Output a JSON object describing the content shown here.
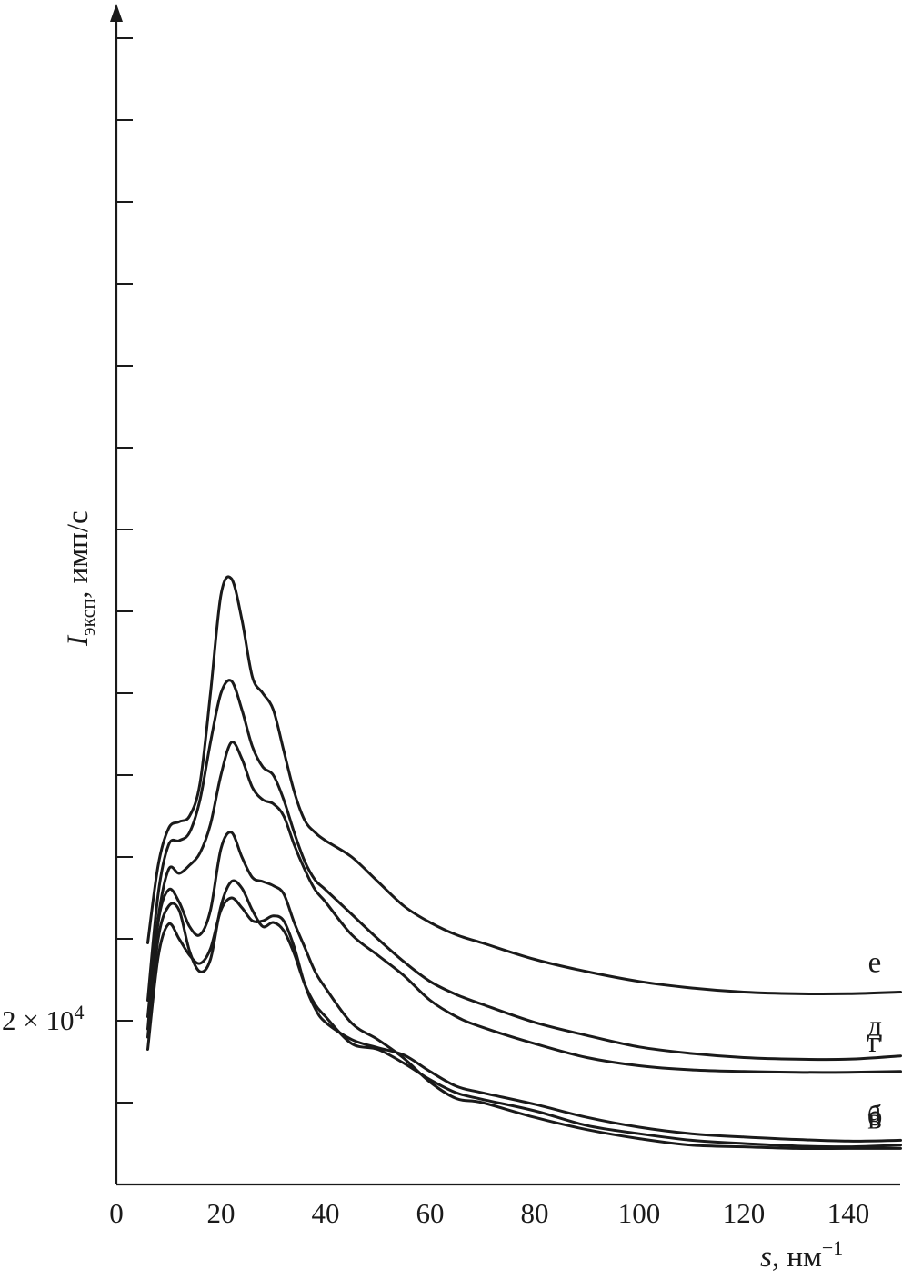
{
  "chart_data": {
    "type": "line",
    "title": "",
    "xlabel_var": "s",
    "xlabel_unit": ", нм",
    "xlabel_exp": "−1",
    "ylabel_var": "I",
    "ylabel_sub": "эксп",
    "ylabel_unit": ", имп/с",
    "y_ref_label_base": "2 × 10",
    "y_ref_label_exp": "4",
    "x_ticks": [
      "0",
      "20",
      "40",
      "60",
      "80",
      "100",
      "120",
      "140"
    ],
    "x_tick_values": [
      0,
      20,
      40,
      60,
      80,
      100,
      120,
      140
    ],
    "xlim": [
      0,
      150
    ],
    "grid": false,
    "series": [
      {
        "name": "а",
        "label": "а",
        "x": [
          6,
          8,
          10,
          12,
          14,
          16,
          18,
          20,
          22,
          24,
          26,
          28,
          30,
          32,
          34,
          36,
          38,
          40,
          45,
          50,
          55,
          60,
          65,
          70,
          80,
          90,
          100,
          110,
          120,
          130,
          140,
          150
        ],
        "y": [
          -0.35,
          0.78,
          1.18,
          1.0,
          0.8,
          0.7,
          0.88,
          1.35,
          1.5,
          1.38,
          1.22,
          1.22,
          1.28,
          1.22,
          0.9,
          0.45,
          0.15,
          -0.02,
          -0.23,
          -0.33,
          -0.42,
          -0.62,
          -0.8,
          -0.88,
          -1.02,
          -1.18,
          -1.3,
          -1.38,
          -1.42,
          -1.45,
          -1.47,
          -1.46
        ]
      },
      {
        "name": "б",
        "label": "б",
        "x": [
          6,
          8,
          10,
          12,
          14,
          16,
          18,
          20,
          22,
          24,
          26,
          28,
          30,
          32,
          34,
          36,
          38,
          40,
          45,
          50,
          55,
          60,
          65,
          70,
          80,
          90,
          100,
          110,
          120,
          130,
          140,
          150
        ],
        "y": [
          -0.2,
          1.0,
          1.4,
          1.35,
          0.85,
          0.6,
          0.75,
          1.4,
          1.7,
          1.62,
          1.35,
          1.15,
          1.2,
          1.1,
          0.82,
          0.45,
          0.2,
          0.05,
          -0.28,
          -0.35,
          -0.52,
          -0.72,
          -0.88,
          -0.96,
          -1.1,
          -1.28,
          -1.38,
          -1.46,
          -1.5,
          -1.53,
          -1.54,
          -1.52
        ]
      },
      {
        "name": "в",
        "label": "в",
        "x": [
          6,
          8,
          10,
          12,
          14,
          16,
          18,
          20,
          22,
          24,
          26,
          28,
          30,
          32,
          34,
          36,
          38,
          40,
          45,
          50,
          55,
          60,
          65,
          70,
          80,
          90,
          100,
          110,
          120,
          130,
          140,
          150
        ],
        "y": [
          -0.1,
          1.2,
          1.6,
          1.45,
          1.15,
          1.05,
          1.35,
          2.1,
          2.3,
          2.0,
          1.75,
          1.7,
          1.65,
          1.55,
          1.2,
          0.9,
          0.6,
          0.4,
          -0.03,
          -0.23,
          -0.46,
          -0.75,
          -0.95,
          -1.0,
          -1.18,
          -1.33,
          -1.44,
          -1.52,
          -1.54,
          -1.56,
          -1.56,
          -1.56
        ]
      },
      {
        "name": "г",
        "label": "г",
        "x": [
          6,
          8,
          10,
          12,
          14,
          16,
          18,
          20,
          22,
          24,
          26,
          28,
          30,
          32,
          34,
          36,
          38,
          40,
          45,
          50,
          55,
          60,
          65,
          70,
          80,
          90,
          100,
          110,
          120,
          130,
          140,
          150
        ],
        "y": [
          0.05,
          1.25,
          1.85,
          1.8,
          1.9,
          2.05,
          2.4,
          3.0,
          3.4,
          3.2,
          2.85,
          2.7,
          2.65,
          2.5,
          2.15,
          1.85,
          1.6,
          1.45,
          1.05,
          0.8,
          0.55,
          0.25,
          0.05,
          -0.08,
          -0.28,
          -0.45,
          -0.55,
          -0.6,
          -0.62,
          -0.63,
          -0.63,
          -0.62
        ]
      },
      {
        "name": "д",
        "label": "д",
        "x": [
          6,
          8,
          10,
          12,
          14,
          16,
          18,
          20,
          22,
          24,
          26,
          28,
          30,
          32,
          34,
          36,
          38,
          40,
          45,
          50,
          55,
          60,
          65,
          70,
          80,
          90,
          100,
          110,
          120,
          130,
          140,
          150
        ],
        "y": [
          0.25,
          1.55,
          2.15,
          2.2,
          2.3,
          2.7,
          3.4,
          4.0,
          4.15,
          3.8,
          3.35,
          3.1,
          3.0,
          2.7,
          2.3,
          1.95,
          1.72,
          1.6,
          1.3,
          1.0,
          0.72,
          0.48,
          0.32,
          0.2,
          -0.02,
          -0.18,
          -0.32,
          -0.4,
          -0.45,
          -0.47,
          -0.47,
          -0.43
        ]
      },
      {
        "name": "е",
        "label": "е",
        "x": [
          6,
          8,
          10,
          12,
          14,
          16,
          18,
          20,
          22,
          24,
          26,
          28,
          30,
          32,
          34,
          36,
          38,
          40,
          45,
          50,
          55,
          60,
          65,
          70,
          80,
          90,
          100,
          110,
          120,
          130,
          140,
          150
        ],
        "y": [
          0.95,
          1.9,
          2.35,
          2.43,
          2.5,
          2.9,
          4.0,
          5.2,
          5.4,
          4.9,
          4.2,
          4.0,
          3.8,
          3.3,
          2.8,
          2.45,
          2.3,
          2.2,
          2.0,
          1.7,
          1.4,
          1.2,
          1.05,
          0.95,
          0.75,
          0.6,
          0.48,
          0.4,
          0.35,
          0.33,
          0.33,
          0.35
        ]
      }
    ]
  }
}
